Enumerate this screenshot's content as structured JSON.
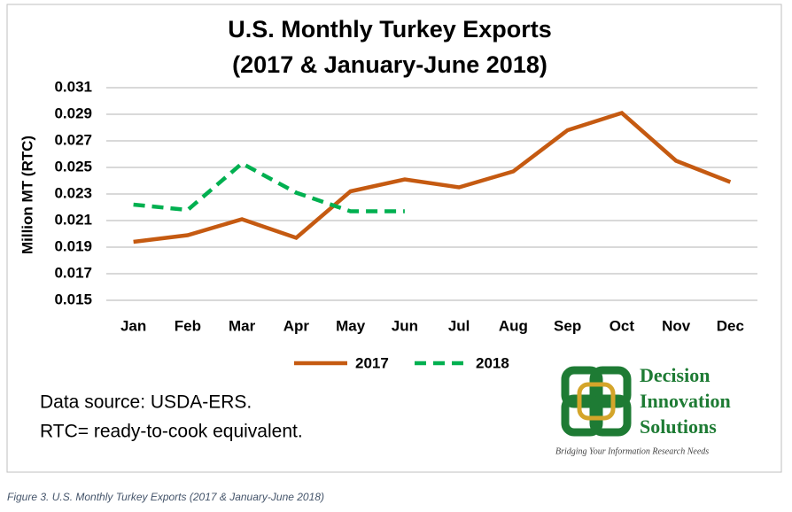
{
  "chart_data": {
    "type": "line",
    "title": "U.S. Monthly Turkey Exports",
    "subtitle": "(2017 & January-June 2018)",
    "y_label": "Million MT (RTC)",
    "categories": [
      "Jan",
      "Feb",
      "Mar",
      "Apr",
      "May",
      "Jun",
      "Jul",
      "Aug",
      "Sep",
      "Oct",
      "Nov",
      "Dec"
    ],
    "series": [
      {
        "name": "2017",
        "color": "#c55a11",
        "dashed": false,
        "values": [
          0.0194,
          0.0199,
          0.0211,
          0.0197,
          0.0232,
          0.0241,
          0.0235,
          0.0247,
          0.0278,
          0.0291,
          0.0255,
          0.0239
        ]
      },
      {
        "name": "2018",
        "color": "#00b050",
        "dashed": true,
        "values": [
          0.0222,
          0.0218,
          0.0253,
          0.0231,
          0.0217,
          0.0217,
          null,
          null,
          null,
          null,
          null,
          null
        ]
      }
    ],
    "ylim": [
      0.015,
      0.031
    ],
    "yticks": [
      0.015,
      0.017,
      0.019,
      0.021,
      0.023,
      0.025,
      0.027,
      0.029,
      0.031
    ],
    "grid": true
  },
  "notes": [
    "Data source: USDA-ERS.",
    "RTC= ready-to-cook equivalent."
  ],
  "logo": {
    "lines": [
      "Decision",
      "Innovation",
      "Solutions"
    ],
    "tagline": "Bridging Your Information Research Needs"
  },
  "caption": "Figure 3. U.S. Monthly Turkey Exports (2017 & January-June 2018)"
}
